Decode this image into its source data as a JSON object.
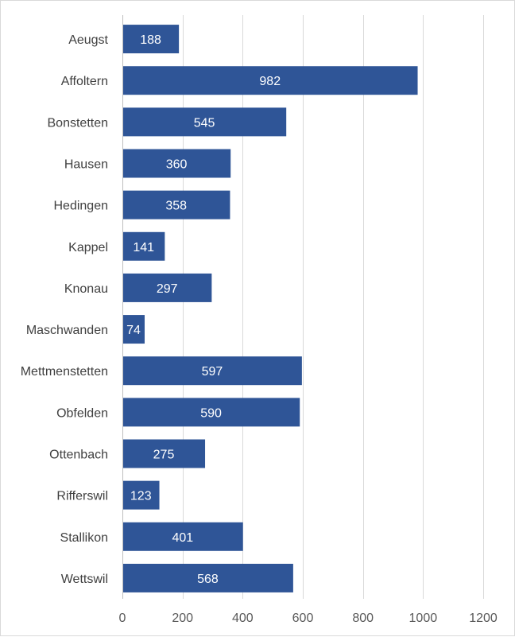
{
  "chart_data": {
    "type": "bar",
    "orientation": "horizontal",
    "categories": [
      "Aeugst",
      "Affoltern",
      "Bonstetten",
      "Hausen",
      "Hedingen",
      "Kappel",
      "Knonau",
      "Maschwanden",
      "Mettmenstetten",
      "Obfelden",
      "Ottenbach",
      "Rifferswil",
      "Stallikon",
      "Wettswil"
    ],
    "values": [
      188,
      982,
      545,
      360,
      358,
      141,
      297,
      74,
      597,
      590,
      275,
      123,
      401,
      568
    ],
    "title": "",
    "xlabel": "",
    "ylabel": "",
    "xlim": [
      0,
      1200
    ],
    "xticks": [
      0,
      200,
      400,
      600,
      800,
      1000,
      1200
    ],
    "grid": "vertical",
    "legend": "none",
    "bar_color": "#2F5597",
    "data_labels": true
  }
}
